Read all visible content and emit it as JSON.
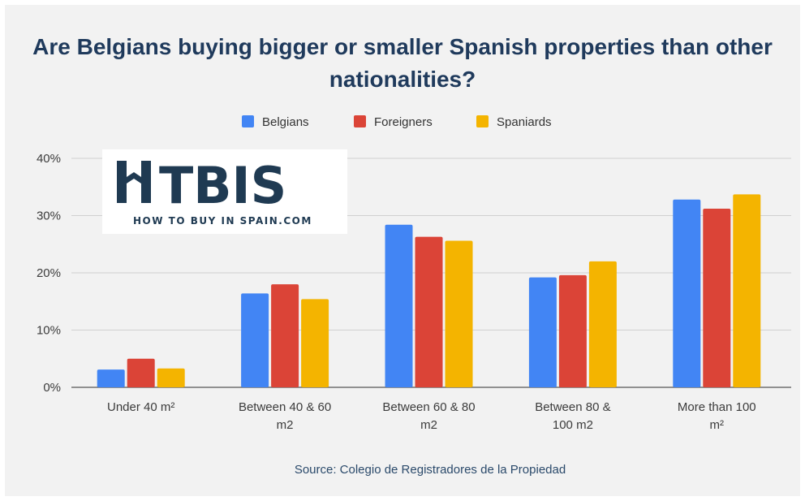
{
  "colors": {
    "belgians": "#4285f4",
    "foreigners": "#db4437",
    "spaniards": "#f4b400",
    "title": "#1f3a5c",
    "grid": "#d0d0d0",
    "logo": "#1f3a52"
  },
  "logo": {
    "main": "HTBIS",
    "sub": "HOW TO BUY IN SPAIN.COM"
  },
  "source": "Source: Colegio de Registradores de la Propiedad",
  "chart_data": {
    "type": "bar",
    "title": "Are Belgians buying bigger or smaller Spanish properties than other nationalities?",
    "categories": [
      [
        "Under 40 m²"
      ],
      [
        "Between 40 & 60",
        "m2"
      ],
      [
        "Between 60 & 80",
        "m2"
      ],
      [
        "Between 80 &",
        "100 m2"
      ],
      [
        "More than 100",
        "m²"
      ]
    ],
    "series": [
      {
        "name": "Belgians",
        "values": [
          3.1,
          16.4,
          28.4,
          19.2,
          32.8
        ]
      },
      {
        "name": "Foreigners",
        "values": [
          5.0,
          18.0,
          26.3,
          19.6,
          31.2
        ]
      },
      {
        "name": "Spaniards",
        "values": [
          3.3,
          15.4,
          25.6,
          22.0,
          33.7
        ]
      }
    ],
    "yticks": [
      "0%",
      "10%",
      "20%",
      "30%",
      "40%"
    ],
    "ylim": [
      0,
      40
    ],
    "grid": true,
    "legend_position": "top"
  }
}
